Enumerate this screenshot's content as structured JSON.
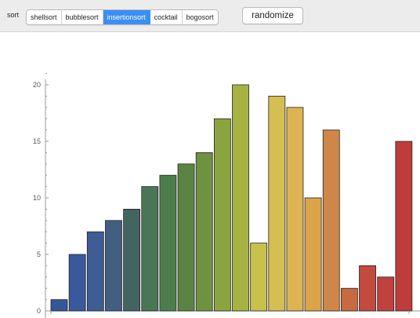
{
  "toolbar": {
    "sort_label": "sort",
    "options": [
      "shellsort",
      "bubblesort",
      "insertionsort",
      "cocktail",
      "bogosort"
    ],
    "selected": "insertionsort",
    "randomize_label": "randomize",
    "accent_color": "#3b8ef3"
  },
  "chart_data": {
    "type": "bar",
    "title": "",
    "xlabel": "",
    "ylabel": "",
    "ylim": [
      0,
      21
    ],
    "yticks": [
      0,
      5,
      10,
      15,
      20
    ],
    "values": [
      1,
      5,
      7,
      8,
      9,
      11,
      12,
      13,
      14,
      17,
      20,
      6,
      19,
      18,
      10,
      16,
      2,
      4,
      3,
      15
    ],
    "colors": [
      "#34579a",
      "#3a599c",
      "#3f5d94",
      "#425f81",
      "#44645f",
      "#497756",
      "#4e7d4c",
      "#5b8444",
      "#6f9240",
      "#8aa540",
      "#a6b343",
      "#c8c24d",
      "#d5bf52",
      "#ddb451",
      "#dba44b",
      "#ce8748",
      "#c76a3f",
      "#c24a3e",
      "#c1413e",
      "#be3c3c"
    ],
    "grid": false
  }
}
